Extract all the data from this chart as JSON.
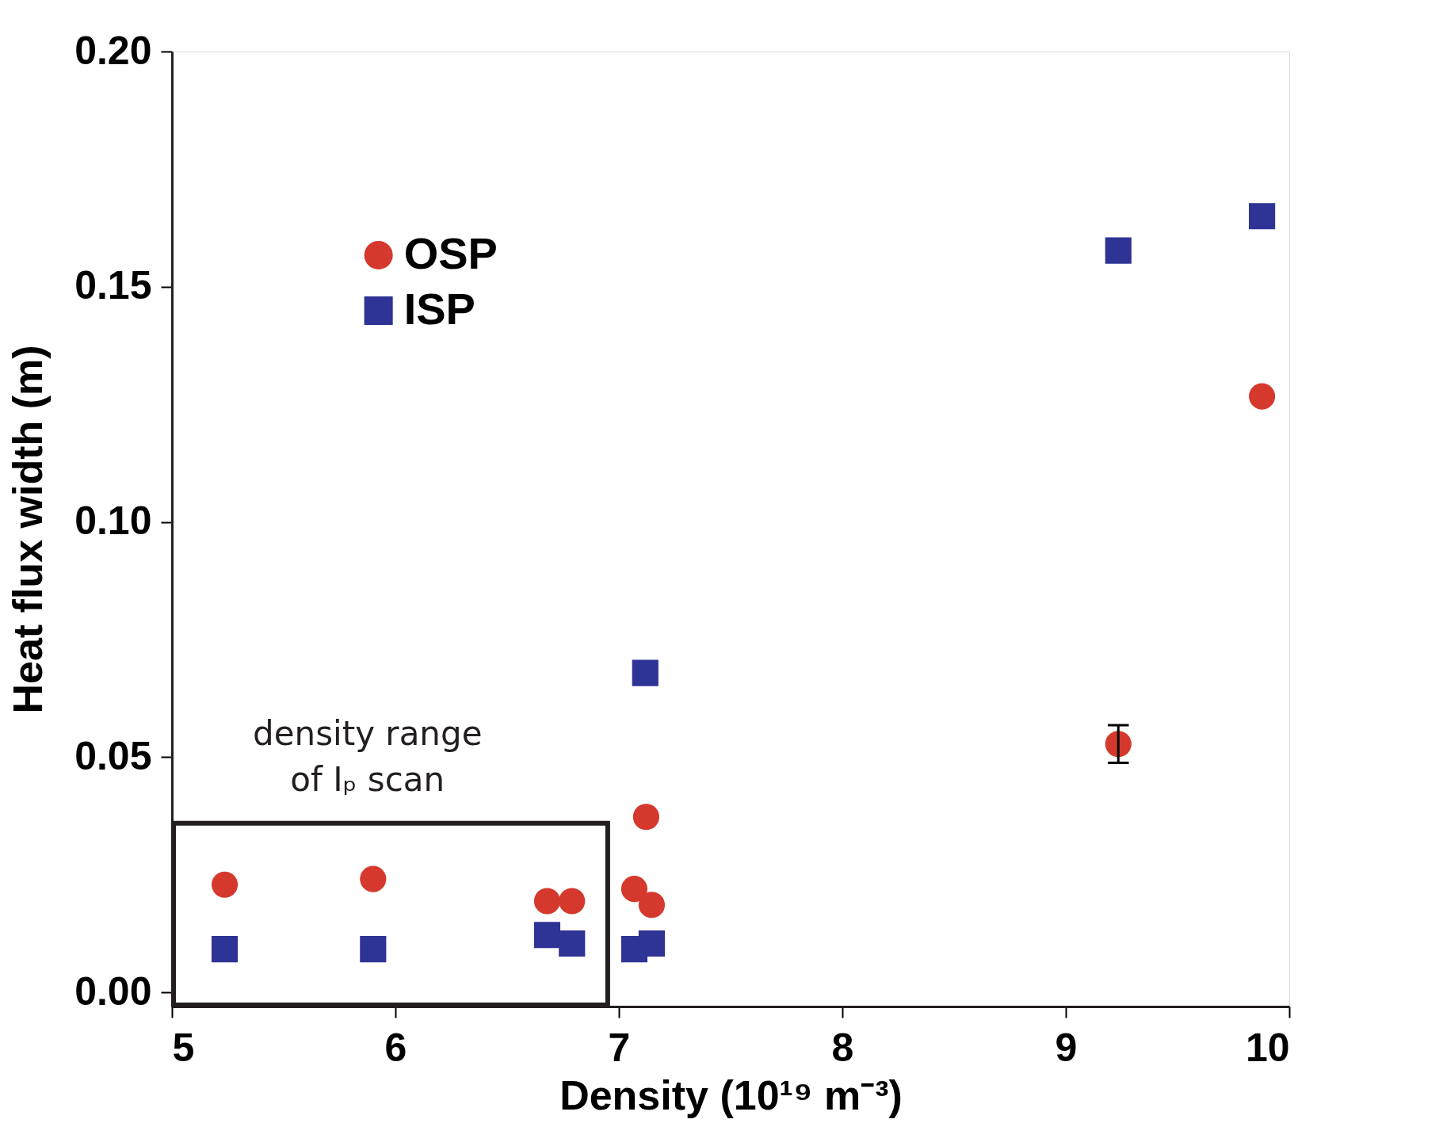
{
  "chart_data": {
    "type": "scatter",
    "xlabel": "Density (10¹⁹ m⁻³)",
    "ylabel": "Heat flux width (m)",
    "xlim": [
      5,
      10
    ],
    "ylim": [
      -0.003,
      0.2
    ],
    "xticks": [
      5,
      6,
      7,
      8,
      9,
      10
    ],
    "yticks": [
      {
        "value": 0,
        "label": "0.00"
      },
      {
        "value": 0.05,
        "label": "0.05"
      },
      {
        "value": 0.1,
        "label": "0.10"
      },
      {
        "value": 0.15,
        "label": "0.15"
      },
      {
        "value": 0.2,
        "label": "0.20"
      }
    ],
    "grid": false,
    "legend": "top left",
    "series": [
      {
        "name": "OSP",
        "color": "#d5392d",
        "marker": "circle",
        "x": [
          5.236,
          5.9,
          6.679,
          6.79,
          7.122,
          7.069,
          7.147,
          9.235,
          9.878
        ],
        "values": [
          0.0229,
          0.0241,
          0.0194,
          0.0194,
          0.0373,
          0.022,
          0.0186,
          0.0528,
          0.1267
        ],
        "errors": [
          null,
          null,
          null,
          null,
          null,
          null,
          null,
          0.004,
          null
        ]
      },
      {
        "name": "ISP",
        "color": "#2e3396",
        "marker": "square",
        "x": [
          5.236,
          5.9,
          6.679,
          6.79,
          7.118,
          7.069,
          7.147,
          9.235,
          9.878
        ],
        "values": [
          0.0092,
          0.0092,
          0.0122,
          0.0104,
          0.0679,
          0.0092,
          0.0104,
          0.1577,
          0.165
        ]
      }
    ],
    "annotations": [
      "density range\nof Iₚ scan"
    ]
  }
}
